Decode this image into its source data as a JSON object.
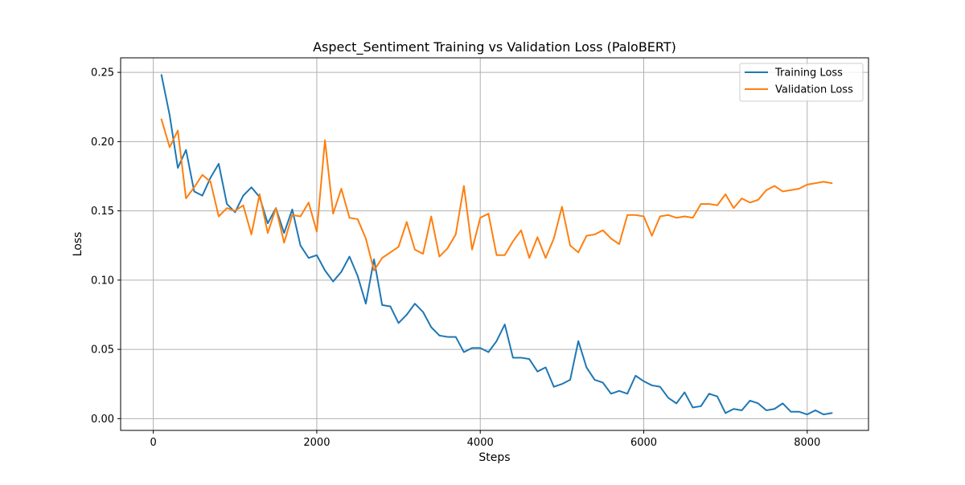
{
  "chart_data": {
    "type": "line",
    "title": "Aspect_Sentiment Training vs Validation Loss (PaloBERT)",
    "xlabel": "Steps",
    "ylabel": "Loss",
    "xlim": [
      -400,
      8750
    ],
    "ylim": [
      -0.0085,
      0.2605
    ],
    "x_ticks": [
      0,
      2000,
      4000,
      6000,
      8000
    ],
    "x_tick_labels": [
      "0",
      "2000",
      "4000",
      "6000",
      "8000"
    ],
    "y_ticks": [
      0.0,
      0.05,
      0.1,
      0.15,
      0.2,
      0.25
    ],
    "y_tick_labels": [
      "0.00",
      "0.05",
      "0.10",
      "0.15",
      "0.20",
      "0.25"
    ],
    "grid": true,
    "legend_position": "top-right",
    "x": [
      100,
      200,
      300,
      400,
      500,
      600,
      700,
      800,
      900,
      1000,
      1100,
      1200,
      1300,
      1400,
      1500,
      1600,
      1700,
      1800,
      1900,
      2000,
      2100,
      2200,
      2300,
      2400,
      2500,
      2600,
      2700,
      2800,
      2900,
      3000,
      3100,
      3200,
      3300,
      3400,
      3500,
      3600,
      3700,
      3800,
      3900,
      4000,
      4100,
      4200,
      4300,
      4400,
      4500,
      4600,
      4700,
      4800,
      4900,
      5000,
      5100,
      5200,
      5300,
      5400,
      5500,
      5600,
      5700,
      5800,
      5900,
      6000,
      6100,
      6200,
      6300,
      6400,
      6500,
      6600,
      6700,
      6800,
      6900,
      7000,
      7100,
      7200,
      7300,
      7400,
      7500,
      7600,
      7700,
      7800,
      7900,
      8000,
      8100,
      8200,
      8300
    ],
    "series": [
      {
        "name": "Training Loss",
        "color": "#1f77b4",
        "values": [
          0.248,
          0.219,
          0.181,
          0.194,
          0.164,
          0.161,
          0.174,
          0.184,
          0.155,
          0.149,
          0.161,
          0.167,
          0.16,
          0.141,
          0.152,
          0.134,
          0.151,
          0.125,
          0.116,
          0.118,
          0.107,
          0.099,
          0.106,
          0.117,
          0.103,
          0.083,
          0.115,
          0.082,
          0.081,
          0.069,
          0.075,
          0.083,
          0.077,
          0.066,
          0.06,
          0.059,
          0.059,
          0.048,
          0.051,
          0.051,
          0.048,
          0.056,
          0.068,
          0.044,
          0.044,
          0.043,
          0.034,
          0.037,
          0.023,
          0.025,
          0.028,
          0.056,
          0.037,
          0.028,
          0.026,
          0.018,
          0.02,
          0.018,
          0.031,
          0.027,
          0.024,
          0.023,
          0.015,
          0.011,
          0.019,
          0.008,
          0.009,
          0.018,
          0.016,
          0.004,
          0.007,
          0.006,
          0.013,
          0.011,
          0.006,
          0.007,
          0.011,
          0.005,
          0.005,
          0.003,
          0.006,
          0.003,
          0.004
        ]
      },
      {
        "name": "Validation Loss",
        "color": "#ff7f0e",
        "values": [
          0.216,
          0.196,
          0.208,
          0.159,
          0.167,
          0.176,
          0.171,
          0.146,
          0.152,
          0.15,
          0.154,
          0.133,
          0.162,
          0.134,
          0.152,
          0.127,
          0.147,
          0.146,
          0.156,
          0.135,
          0.201,
          0.148,
          0.166,
          0.145,
          0.144,
          0.13,
          0.107,
          0.116,
          0.12,
          0.124,
          0.142,
          0.122,
          0.119,
          0.146,
          0.117,
          0.123,
          0.133,
          0.168,
          0.122,
          0.145,
          0.148,
          0.118,
          0.118,
          0.128,
          0.136,
          0.116,
          0.131,
          0.116,
          0.13,
          0.153,
          0.125,
          0.12,
          0.132,
          0.133,
          0.136,
          0.13,
          0.126,
          0.147,
          0.147,
          0.146,
          0.132,
          0.146,
          0.147,
          0.145,
          0.146,
          0.145,
          0.155,
          0.155,
          0.154,
          0.162,
          0.152,
          0.159,
          0.156,
          0.158,
          0.165,
          0.168,
          0.164,
          0.165,
          0.166,
          0.169,
          0.17,
          0.171,
          0.17
        ]
      }
    ]
  }
}
